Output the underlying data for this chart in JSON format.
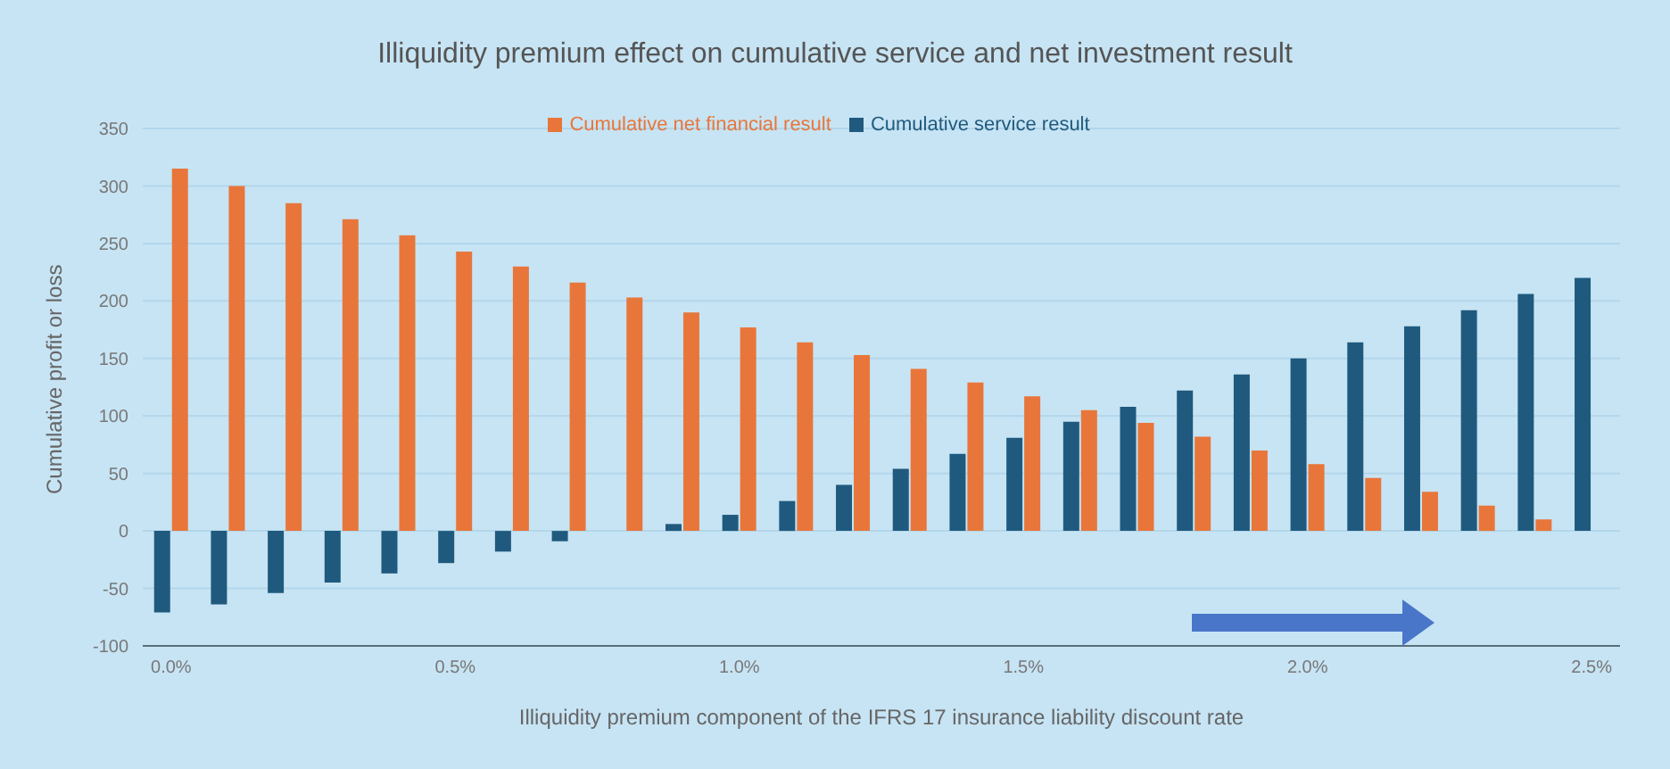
{
  "chart_data": {
    "type": "bar",
    "title": "Illiquidity premium effect on cumulative service and net investment result",
    "xlabel": "Illiquidity premium component of the IFRS 17 insurance liability discount rate",
    "ylabel": "Cumulative profit or loss",
    "categories": [
      "0.0%",
      null,
      null,
      null,
      null,
      "0.5%",
      null,
      null,
      null,
      null,
      "1.0%",
      null,
      null,
      null,
      null,
      "1.5%",
      null,
      null,
      null,
      null,
      "2.0%",
      null,
      null,
      null,
      null,
      "2.5%"
    ],
    "series": [
      {
        "name": "Cumulative service result",
        "color": "#1f5a7e",
        "values": [
          -71,
          -64,
          -54,
          -45,
          -37,
          -28,
          -18,
          -9,
          0,
          6,
          14,
          26,
          40,
          54,
          67,
          81,
          95,
          108,
          122,
          136,
          150,
          164,
          178,
          192,
          206,
          220
        ]
      },
      {
        "name": "Cumulative net financial result",
        "color": "#e8763a",
        "values": [
          315,
          300,
          285,
          271,
          257,
          243,
          230,
          216,
          203,
          190,
          177,
          164,
          153,
          141,
          129,
          117,
          105,
          94,
          82,
          70,
          58,
          46,
          34,
          22,
          10,
          0
        ]
      }
    ],
    "ylim": [
      -100,
      350
    ],
    "yticks": [
      -100,
      -50,
      0,
      50,
      100,
      150,
      200,
      250,
      300,
      350
    ],
    "grid": "y",
    "legend": "top"
  }
}
